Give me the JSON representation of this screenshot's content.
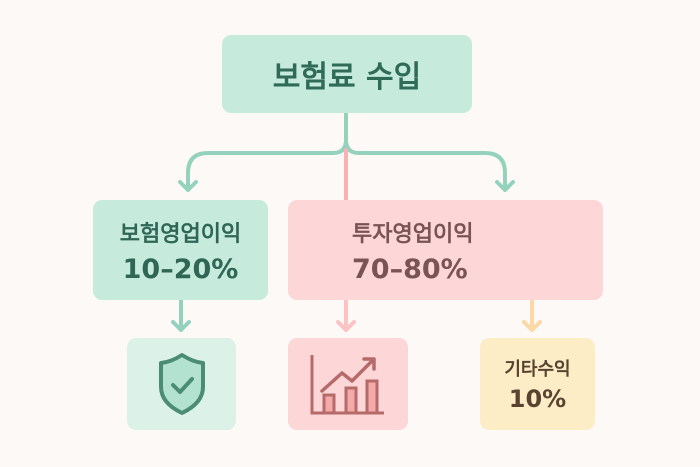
{
  "title": "보험료 수입",
  "branches": [
    {
      "label": "보험영업이익",
      "value": "10–20%",
      "icon": "shield-check-icon",
      "color": "#c6ebdc"
    },
    {
      "label": "투자영업이익",
      "value": "70–80%",
      "icon": "bar-chart-trend-up-icon",
      "color": "#fdd7d7"
    },
    {
      "label": "기타수익",
      "value": "10%",
      "color": "#fdedc7"
    }
  ]
}
